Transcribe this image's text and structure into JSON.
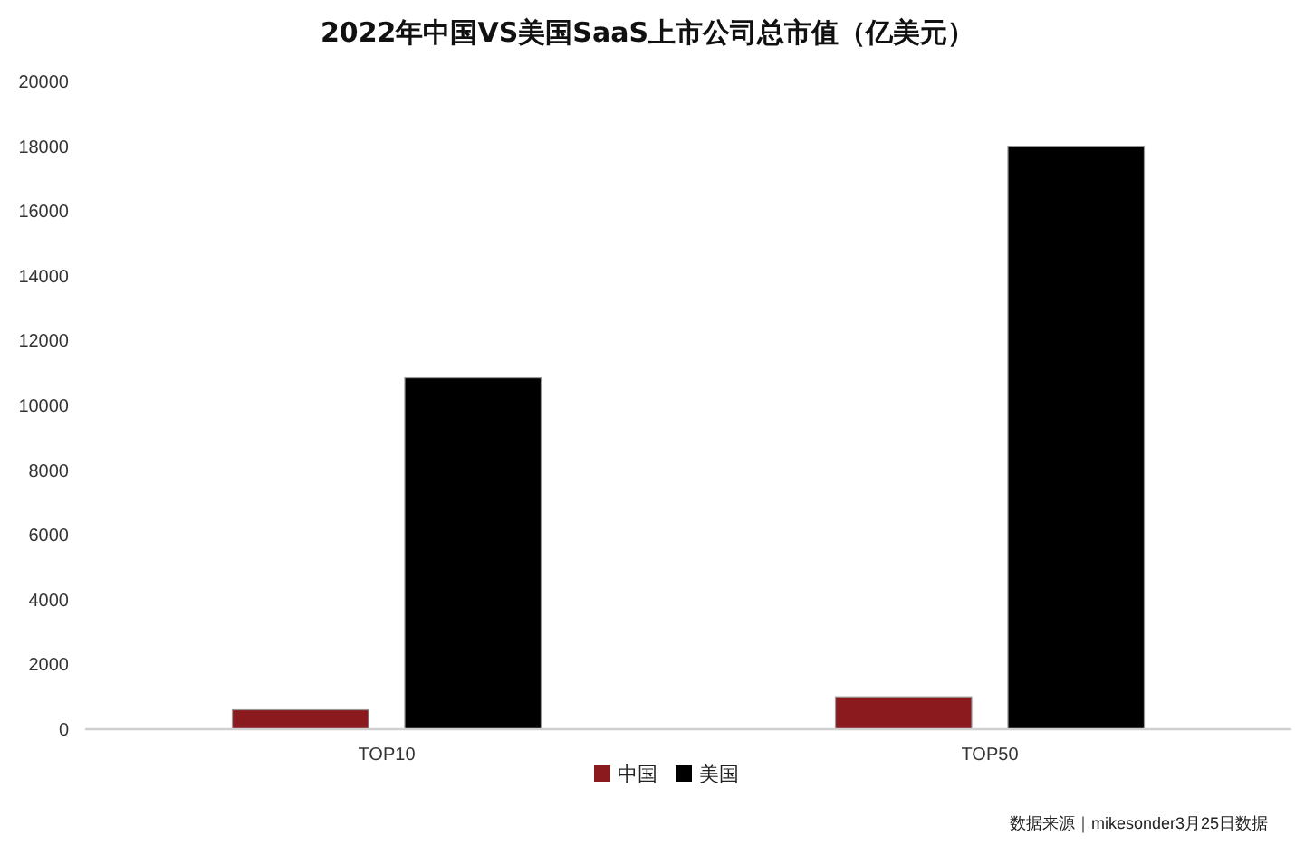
{
  "chart_data": {
    "type": "bar",
    "title": "2022年中国VS美国SaaS上市公司总市值（亿美元）",
    "categories": [
      "TOP10",
      "TOP50"
    ],
    "series": [
      {
        "name": "中国",
        "color": "#8b1a1f",
        "values": [
          600,
          1000
        ]
      },
      {
        "name": "美国",
        "color": "#000000",
        "values": [
          10850,
          18000
        ]
      }
    ],
    "ylim": [
      0,
      20000
    ],
    "yticks": [
      0,
      2000,
      4000,
      6000,
      8000,
      10000,
      12000,
      14000,
      16000,
      18000,
      20000
    ],
    "legend": "bottom",
    "annotations": [
      "数据来源｜mikesonder3月25日数据"
    ]
  }
}
